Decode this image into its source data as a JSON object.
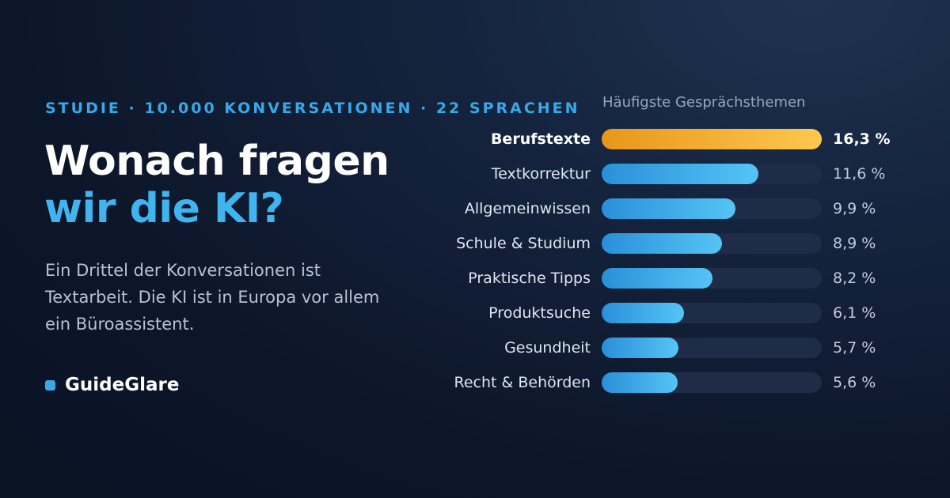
{
  "eyebrow": "STUDIE · 10.000 KONVERSATIONEN · 22 SPRACHEN",
  "headline": {
    "line1": "Wonach fragen",
    "line2": "wir die KI?"
  },
  "lede": "Ein Drittel der Konversationen ist Textarbeit. Die KI ist in Europa vor allem ein Büroassistent.",
  "brand": {
    "name": "GuideGlare",
    "color": "#3aa7e8"
  },
  "colors": {
    "highlight": "#ffc84e",
    "bar": "#3fb4ef",
    "track": "#1e2c47"
  },
  "chart_data": {
    "type": "bar",
    "orientation": "horizontal",
    "title": "Häufigste Gesprächsthemen",
    "categories": [
      "Berufstexte",
      "Textkorrektur",
      "Allgemeinwissen",
      "Schule & Studium",
      "Praktische Tipps",
      "Produktsuche",
      "Gesundheit",
      "Recht & Behörden"
    ],
    "values": [
      16.3,
      11.6,
      9.9,
      8.9,
      8.2,
      6.1,
      5.7,
      5.6
    ],
    "value_labels": [
      "16,3 %",
      "11,6 %",
      "9,9 %",
      "8,9 %",
      "8,2 %",
      "6,1 %",
      "5,7 %",
      "5,6 %"
    ],
    "xlim": [
      0,
      16.3
    ],
    "highlight_index": 0,
    "grid": false
  }
}
